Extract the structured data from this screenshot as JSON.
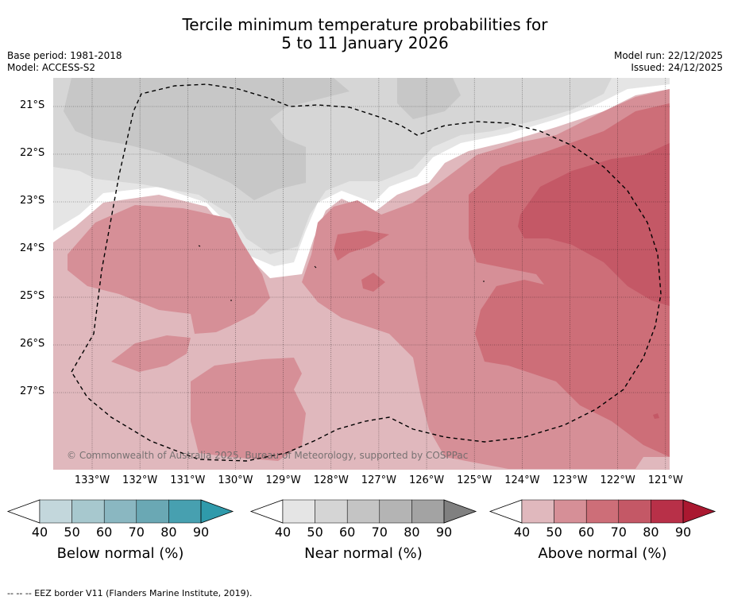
{
  "title_line1": "Tercile minimum temperature probabilities for",
  "title_line2": "5 to 11 January 2026",
  "base_period": "Base period: 1981-2018",
  "model": "Model: ACCESS-S2",
  "model_run": "Model run: 22/12/2025",
  "issued": "Issued: 24/12/2025",
  "copyright": "© Commonwealth of Australia 2025, Bureau of Meteorology, supported by COSPPac",
  "footer_note": "--  --  -- EEZ border V11 (Flanders Marine Institute, 2019).",
  "lat_labels": [
    "21°S",
    "22°S",
    "23°S",
    "24°S",
    "25°S",
    "26°S",
    "27°S"
  ],
  "lon_labels": [
    "133°W",
    "132°W",
    "131°W",
    "130°W",
    "129°W",
    "128°W",
    "127°W",
    "126°W",
    "125°W",
    "124°W",
    "123°W",
    "122°W",
    "121°W"
  ],
  "colorbars": [
    {
      "title": "Below normal (%)",
      "ticks": [
        "40",
        "50",
        "60",
        "70",
        "80",
        "90"
      ],
      "colors": [
        "#c3d7dc",
        "#a7c8ce",
        "#8ab7c1",
        "#6aa8b4",
        "#47a0b0"
      ],
      "max_color": "#2f9aab"
    },
    {
      "title": "Near normal (%)",
      "ticks": [
        "40",
        "50",
        "60",
        "70",
        "80",
        "90"
      ],
      "colors": [
        "#e5e5e5",
        "#d5d5d5",
        "#c4c4c4",
        "#b4b4b4",
        "#a3a3a3"
      ],
      "max_color": "#808080"
    },
    {
      "title": "Above normal (%)",
      "ticks": [
        "40",
        "50",
        "60",
        "70",
        "80",
        "90"
      ],
      "colors": [
        "#e0b8bd",
        "#d68f97",
        "#cd6e78",
        "#c45866",
        "#b83048"
      ],
      "max_color": "#aa1830"
    }
  ],
  "map_colors": {
    "near_40": "#e5e5e5",
    "near_50": "#d6d6d6",
    "near_60": "#c7c7c7",
    "above_40": "#e0b8bd",
    "above_50": "#d68f97",
    "above_60": "#cd6e78",
    "above_70": "#c45866",
    "above_80": "#be4a58"
  }
}
